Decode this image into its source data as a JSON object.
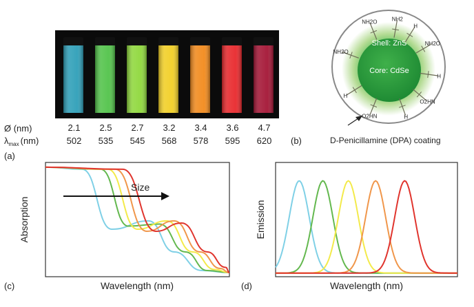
{
  "panel_a": {
    "label": "(a)",
    "size_row_label": "Ø (nm)",
    "lambda_row_label_main": "λ",
    "lambda_row_label_sub": "max",
    "lambda_row_label_unit": "(nm)",
    "vials": [
      {
        "size": "2.1",
        "lambda": "502",
        "color": "#2e9fb8"
      },
      {
        "size": "2.5",
        "lambda": "535",
        "color": "#52c34a"
      },
      {
        "size": "2.7",
        "lambda": "545",
        "color": "#8fd83c"
      },
      {
        "size": "3.2",
        "lambda": "568",
        "color": "#f2cf25"
      },
      {
        "size": "3.4",
        "lambda": "578",
        "color": "#f28a1c"
      },
      {
        "size": "3.6",
        "lambda": "595",
        "color": "#e8282c"
      },
      {
        "size": "4.7",
        "lambda": "620",
        "color": "#a41535"
      }
    ]
  },
  "panel_b": {
    "label": "(b)",
    "shell_label": "Shell: ZnS",
    "core_label": "Core: CdSe",
    "coating_caption": "D-Penicillamine (DPA) coating",
    "ligand_labels": [
      "NH2O",
      "NH2",
      "H",
      "NH2O",
      "H",
      "O2HN",
      "H",
      "O2HN",
      "H",
      "NH2O"
    ]
  },
  "panel_c": {
    "label": "(c)",
    "ylabel": "Absorption",
    "xlabel": "Wavelength (nm)",
    "arrow_label": "Size"
  },
  "panel_d": {
    "label": "(d)",
    "ylabel": "Emission",
    "xlabel": "Wavelength (nm)"
  },
  "colors": {
    "cyan": "#7fd0e6",
    "green": "#63b84e",
    "yellow": "#f3ea4a",
    "orange": "#f0964a",
    "red": "#e0342d"
  },
  "chart_data": [
    {
      "type": "line",
      "title": "",
      "xlabel": "Wavelength (nm)",
      "ylabel": "Absorption",
      "annotation": "Size",
      "series": [
        {
          "color": "#7fd0e6",
          "x": [
            0,
            0.2,
            0.36,
            0.56,
            0.7,
            0.85,
            1.0
          ],
          "y": [
            1.02,
            1.0,
            0.42,
            0.5,
            0.2,
            0.02,
            0.0
          ]
        },
        {
          "color": "#63b84e",
          "x": [
            0,
            0.3,
            0.45,
            0.62,
            0.76,
            0.88,
            1.0
          ],
          "y": [
            1.02,
            1.0,
            0.45,
            0.47,
            0.2,
            0.02,
            0.0
          ]
        },
        {
          "color": "#f3ea4a",
          "x": [
            0,
            0.34,
            0.5,
            0.66,
            0.8,
            0.92,
            1.0
          ],
          "y": [
            1.02,
            1.0,
            0.42,
            0.5,
            0.2,
            0.03,
            0.0
          ]
        },
        {
          "color": "#f0964a",
          "x": [
            0,
            0.38,
            0.55,
            0.7,
            0.84,
            0.95,
            1.0
          ],
          "y": [
            1.02,
            1.0,
            0.4,
            0.5,
            0.2,
            0.04,
            0.0
          ]
        },
        {
          "color": "#e0342d",
          "x": [
            0,
            0.42,
            0.6,
            0.74,
            0.88,
            0.98,
            1.0
          ],
          "y": [
            1.02,
            1.0,
            0.4,
            0.48,
            0.2,
            0.05,
            0.0
          ]
        }
      ]
    },
    {
      "type": "line",
      "title": "",
      "xlabel": "Wavelength (nm)",
      "ylabel": "Emission",
      "series": [
        {
          "color": "#7fd0e6",
          "peak_x": 0.13,
          "peak_y": 1.0,
          "width": 0.055
        },
        {
          "color": "#63b84e",
          "peak_x": 0.26,
          "peak_y": 1.0,
          "width": 0.055
        },
        {
          "color": "#f3ea4a",
          "peak_x": 0.4,
          "peak_y": 1.0,
          "width": 0.055
        },
        {
          "color": "#f0964a",
          "peak_x": 0.55,
          "peak_y": 1.0,
          "width": 0.055
        },
        {
          "color": "#e0342d",
          "peak_x": 0.71,
          "peak_y": 1.0,
          "width": 0.055
        }
      ]
    }
  ]
}
